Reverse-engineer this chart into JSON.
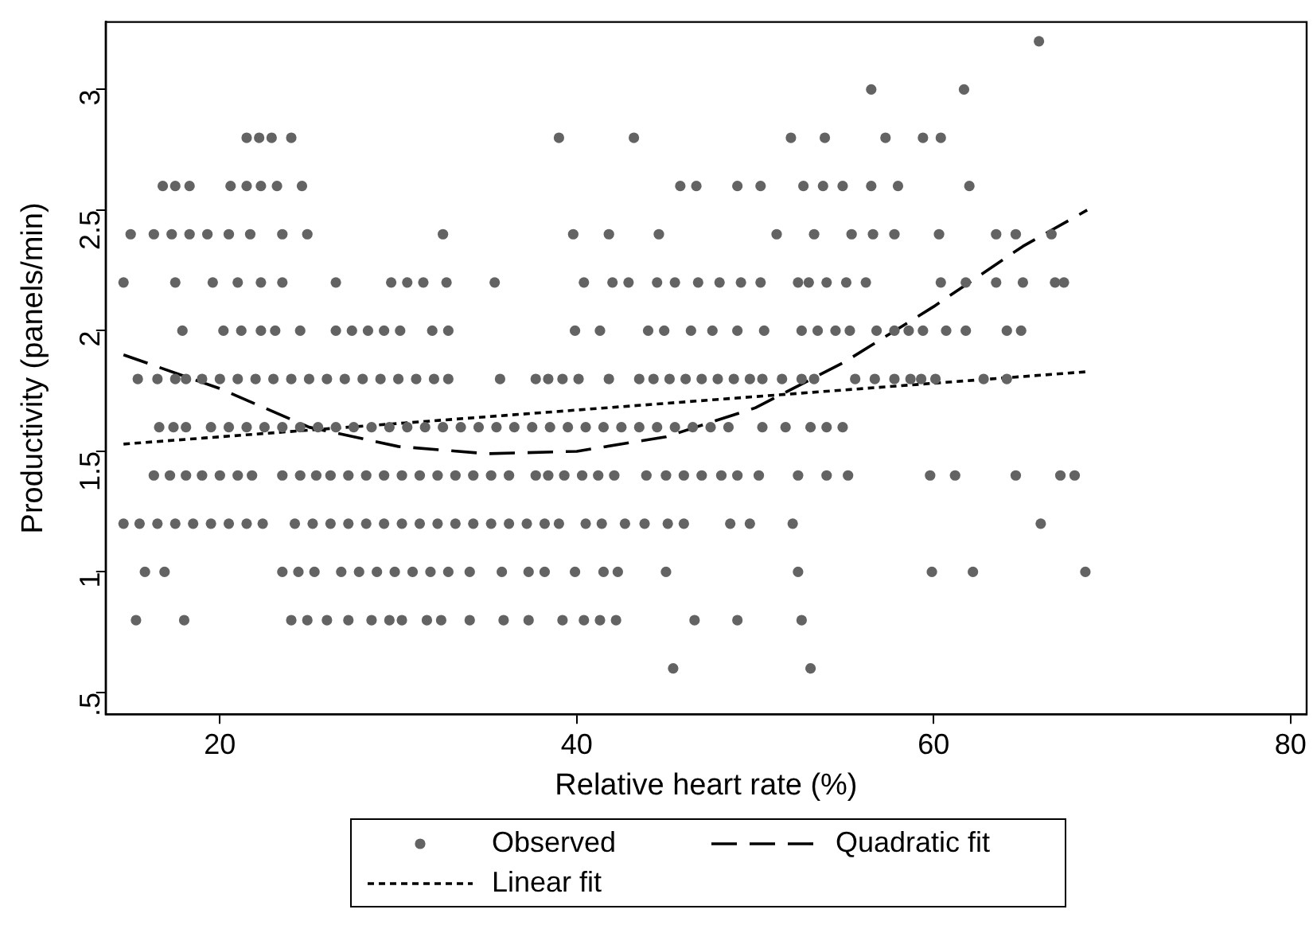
{
  "chart_data": {
    "type": "scatter",
    "xlabel": "Relative heart rate (%)",
    "ylabel": "Productivity (panels/min)",
    "xlim": [
      13.6,
      80.9
    ],
    "xticks": [
      20,
      40,
      60,
      80
    ],
    "ylim": [
      0.41,
      3.28
    ],
    "yticks": [
      {
        "value": 0.5,
        "label": ".5"
      },
      1,
      1.5,
      2,
      2.5,
      3
    ],
    "grid": false,
    "legend": "bottom",
    "series": [
      {
        "name": "Observed",
        "type": "scatter",
        "marker": "circle",
        "color": "#636363",
        "x": [
          65.9,
          56.5,
          61.7,
          21.5,
          22.2,
          22.9,
          24.0,
          39.0,
          43.2,
          52.0,
          53.9,
          57.3,
          59.4,
          60.4,
          16.8,
          17.5,
          18.3,
          20.6,
          21.5,
          22.3,
          23.2,
          24.6,
          45.8,
          46.7,
          49.0,
          50.3,
          52.7,
          53.8,
          54.9,
          56.5,
          58.0,
          62.0,
          15.0,
          16.3,
          17.3,
          18.3,
          19.3,
          20.5,
          21.7,
          23.5,
          24.9,
          32.5,
          39.8,
          41.8,
          44.6,
          51.2,
          53.3,
          55.4,
          56.6,
          57.8,
          60.3,
          63.5,
          64.6,
          66.6,
          14.6,
          17.5,
          19.6,
          21.0,
          22.3,
          23.5,
          26.5,
          29.6,
          30.5,
          31.4,
          32.7,
          35.4,
          40.4,
          42.0,
          42.9,
          44.5,
          45.5,
          46.8,
          48.0,
          49.2,
          50.3,
          52.4,
          53.0,
          54.0,
          55.1,
          56.2,
          60.4,
          61.8,
          63.5,
          65.0,
          66.8,
          67.3,
          17.9,
          20.2,
          21.2,
          22.3,
          23.1,
          24.5,
          26.5,
          27.4,
          28.3,
          29.2,
          30.1,
          31.9,
          32.8,
          39.9,
          41.3,
          44.0,
          44.9,
          46.4,
          47.6,
          49.0,
          50.5,
          52.6,
          53.5,
          54.5,
          55.3,
          56.8,
          57.8,
          58.6,
          59.4,
          60.7,
          61.8,
          64.1,
          64.9,
          15.4,
          16.5,
          17.5,
          18.1,
          19.0,
          20.0,
          21.0,
          22.0,
          23.0,
          24.0,
          25.0,
          26.0,
          27.0,
          28.0,
          29.0,
          30.0,
          31.0,
          32.0,
          32.8,
          35.7,
          37.7,
          38.4,
          39.2,
          40.1,
          41.8,
          43.5,
          44.3,
          45.2,
          46.1,
          47.0,
          47.9,
          48.8,
          49.7,
          50.4,
          51.5,
          52.6,
          53.3,
          55.6,
          56.7,
          57.8,
          58.7,
          59.3,
          60.1,
          62.8,
          64.1,
          16.6,
          17.4,
          18.1,
          19.5,
          20.5,
          21.5,
          22.5,
          23.5,
          24.5,
          25.5,
          26.5,
          27.5,
          28.5,
          29.5,
          30.5,
          31.5,
          32.5,
          33.5,
          34.5,
          35.5,
          36.5,
          37.5,
          38.5,
          39.5,
          40.5,
          41.5,
          42.5,
          43.5,
          44.5,
          45.5,
          46.5,
          47.5,
          48.5,
          50.4,
          51.7,
          53.1,
          54.0,
          54.9,
          16.3,
          17.2,
          18.1,
          19.0,
          20.0,
          21.0,
          21.8,
          23.5,
          24.5,
          25.4,
          26.2,
          27.2,
          28.2,
          29.2,
          30.2,
          31.2,
          32.2,
          33.2,
          34.2,
          35.2,
          36.2,
          37.7,
          38.4,
          39.3,
          40.3,
          41.2,
          42.1,
          43.9,
          45.0,
          46.0,
          47.0,
          48.1,
          49.0,
          50.2,
          52.4,
          54.0,
          55.2,
          59.8,
          61.2,
          64.6,
          67.1,
          67.9,
          14.6,
          15.5,
          16.5,
          17.5,
          18.5,
          19.5,
          20.5,
          21.5,
          22.4,
          24.2,
          25.2,
          26.2,
          27.2,
          28.2,
          29.2,
          30.2,
          31.2,
          32.2,
          33.2,
          34.2,
          35.2,
          36.2,
          37.2,
          38.2,
          39.0,
          40.5,
          41.4,
          42.7,
          43.8,
          45.1,
          46.0,
          48.6,
          49.7,
          52.1,
          66.0,
          15.8,
          16.9,
          23.5,
          24.4,
          25.3,
          26.8,
          27.8,
          28.8,
          29.8,
          30.8,
          31.8,
          32.8,
          34.0,
          35.8,
          37.3,
          38.2,
          39.9,
          41.5,
          42.3,
          45.0,
          52.4,
          59.9,
          62.2,
          68.5,
          15.3,
          18.0,
          24.0,
          24.9,
          26.0,
          27.2,
          28.5,
          29.5,
          30.2,
          31.6,
          32.4,
          34.0,
          35.9,
          37.3,
          39.2,
          40.4,
          41.3,
          42.2,
          46.6,
          49.0,
          52.6,
          45.4,
          53.1
        ],
        "values": [
          3.2,
          3.0,
          3.0,
          2.8,
          2.8,
          2.8,
          2.8,
          2.8,
          2.8,
          2.8,
          2.8,
          2.8,
          2.8,
          2.8,
          2.6,
          2.6,
          2.6,
          2.6,
          2.6,
          2.6,
          2.6,
          2.6,
          2.6,
          2.6,
          2.6,
          2.6,
          2.6,
          2.6,
          2.6,
          2.6,
          2.6,
          2.6,
          2.4,
          2.4,
          2.4,
          2.4,
          2.4,
          2.4,
          2.4,
          2.4,
          2.4,
          2.4,
          2.4,
          2.4,
          2.4,
          2.4,
          2.4,
          2.4,
          2.4,
          2.4,
          2.4,
          2.4,
          2.4,
          2.4,
          2.2,
          2.2,
          2.2,
          2.2,
          2.2,
          2.2,
          2.2,
          2.2,
          2.2,
          2.2,
          2.2,
          2.2,
          2.2,
          2.2,
          2.2,
          2.2,
          2.2,
          2.2,
          2.2,
          2.2,
          2.2,
          2.2,
          2.2,
          2.2,
          2.2,
          2.2,
          2.2,
          2.2,
          2.2,
          2.2,
          2.2,
          2.2,
          2.0,
          2.0,
          2.0,
          2.0,
          2.0,
          2.0,
          2.0,
          2.0,
          2.0,
          2.0,
          2.0,
          2.0,
          2.0,
          2.0,
          2.0,
          2.0,
          2.0,
          2.0,
          2.0,
          2.0,
          2.0,
          2.0,
          2.0,
          2.0,
          2.0,
          2.0,
          2.0,
          2.0,
          2.0,
          2.0,
          2.0,
          2.0,
          2.0,
          1.8,
          1.8,
          1.8,
          1.8,
          1.8,
          1.8,
          1.8,
          1.8,
          1.8,
          1.8,
          1.8,
          1.8,
          1.8,
          1.8,
          1.8,
          1.8,
          1.8,
          1.8,
          1.8,
          1.8,
          1.8,
          1.8,
          1.8,
          1.8,
          1.8,
          1.8,
          1.8,
          1.8,
          1.8,
          1.8,
          1.8,
          1.8,
          1.8,
          1.8,
          1.8,
          1.8,
          1.8,
          1.8,
          1.8,
          1.8,
          1.8,
          1.8,
          1.8,
          1.8,
          1.8,
          1.6,
          1.6,
          1.6,
          1.6,
          1.6,
          1.6,
          1.6,
          1.6,
          1.6,
          1.6,
          1.6,
          1.6,
          1.6,
          1.6,
          1.6,
          1.6,
          1.6,
          1.6,
          1.6,
          1.6,
          1.6,
          1.6,
          1.6,
          1.6,
          1.6,
          1.6,
          1.6,
          1.6,
          1.6,
          1.6,
          1.6,
          1.6,
          1.6,
          1.6,
          1.6,
          1.6,
          1.6,
          1.6,
          1.4,
          1.4,
          1.4,
          1.4,
          1.4,
          1.4,
          1.4,
          1.4,
          1.4,
          1.4,
          1.4,
          1.4,
          1.4,
          1.4,
          1.4,
          1.4,
          1.4,
          1.4,
          1.4,
          1.4,
          1.4,
          1.4,
          1.4,
          1.4,
          1.4,
          1.4,
          1.4,
          1.4,
          1.4,
          1.4,
          1.4,
          1.4,
          1.4,
          1.4,
          1.4,
          1.4,
          1.4,
          1.4,
          1.4,
          1.4,
          1.4,
          1.4,
          1.2,
          1.2,
          1.2,
          1.2,
          1.2,
          1.2,
          1.2,
          1.2,
          1.2,
          1.2,
          1.2,
          1.2,
          1.2,
          1.2,
          1.2,
          1.2,
          1.2,
          1.2,
          1.2,
          1.2,
          1.2,
          1.2,
          1.2,
          1.2,
          1.2,
          1.2,
          1.2,
          1.2,
          1.2,
          1.2,
          1.2,
          1.2,
          1.2,
          1.2,
          1.2,
          1.0,
          1.0,
          1.0,
          1.0,
          1.0,
          1.0,
          1.0,
          1.0,
          1.0,
          1.0,
          1.0,
          1.0,
          1.0,
          1.0,
          1.0,
          1.0,
          1.0,
          1.0,
          1.0,
          1.0,
          1.0,
          1.0,
          1.0,
          1.0,
          0.8,
          0.8,
          0.8,
          0.8,
          0.8,
          0.8,
          0.8,
          0.8,
          0.8,
          0.8,
          0.8,
          0.8,
          0.8,
          0.8,
          0.8,
          0.8,
          0.8,
          0.8,
          0.8,
          0.8,
          0.8,
          0.6,
          0.6
        ]
      },
      {
        "name": "Quadratic fit",
        "type": "line",
        "marker": "none",
        "line_style": "dashed",
        "color": "#000000",
        "x": [
          14.6,
          20,
          25,
          30,
          35,
          40,
          45,
          50,
          55,
          60,
          65,
          68.6
        ],
        "values": [
          1.9,
          1.76,
          1.6,
          1.52,
          1.49,
          1.5,
          1.56,
          1.68,
          1.87,
          2.1,
          2.35,
          2.5
        ]
      },
      {
        "name": "Linear fit",
        "type": "line",
        "marker": "none",
        "line_style": "dotted",
        "color": "#000000",
        "x": [
          14.6,
          68.6
        ],
        "values": [
          1.53,
          1.83
        ]
      }
    ]
  }
}
